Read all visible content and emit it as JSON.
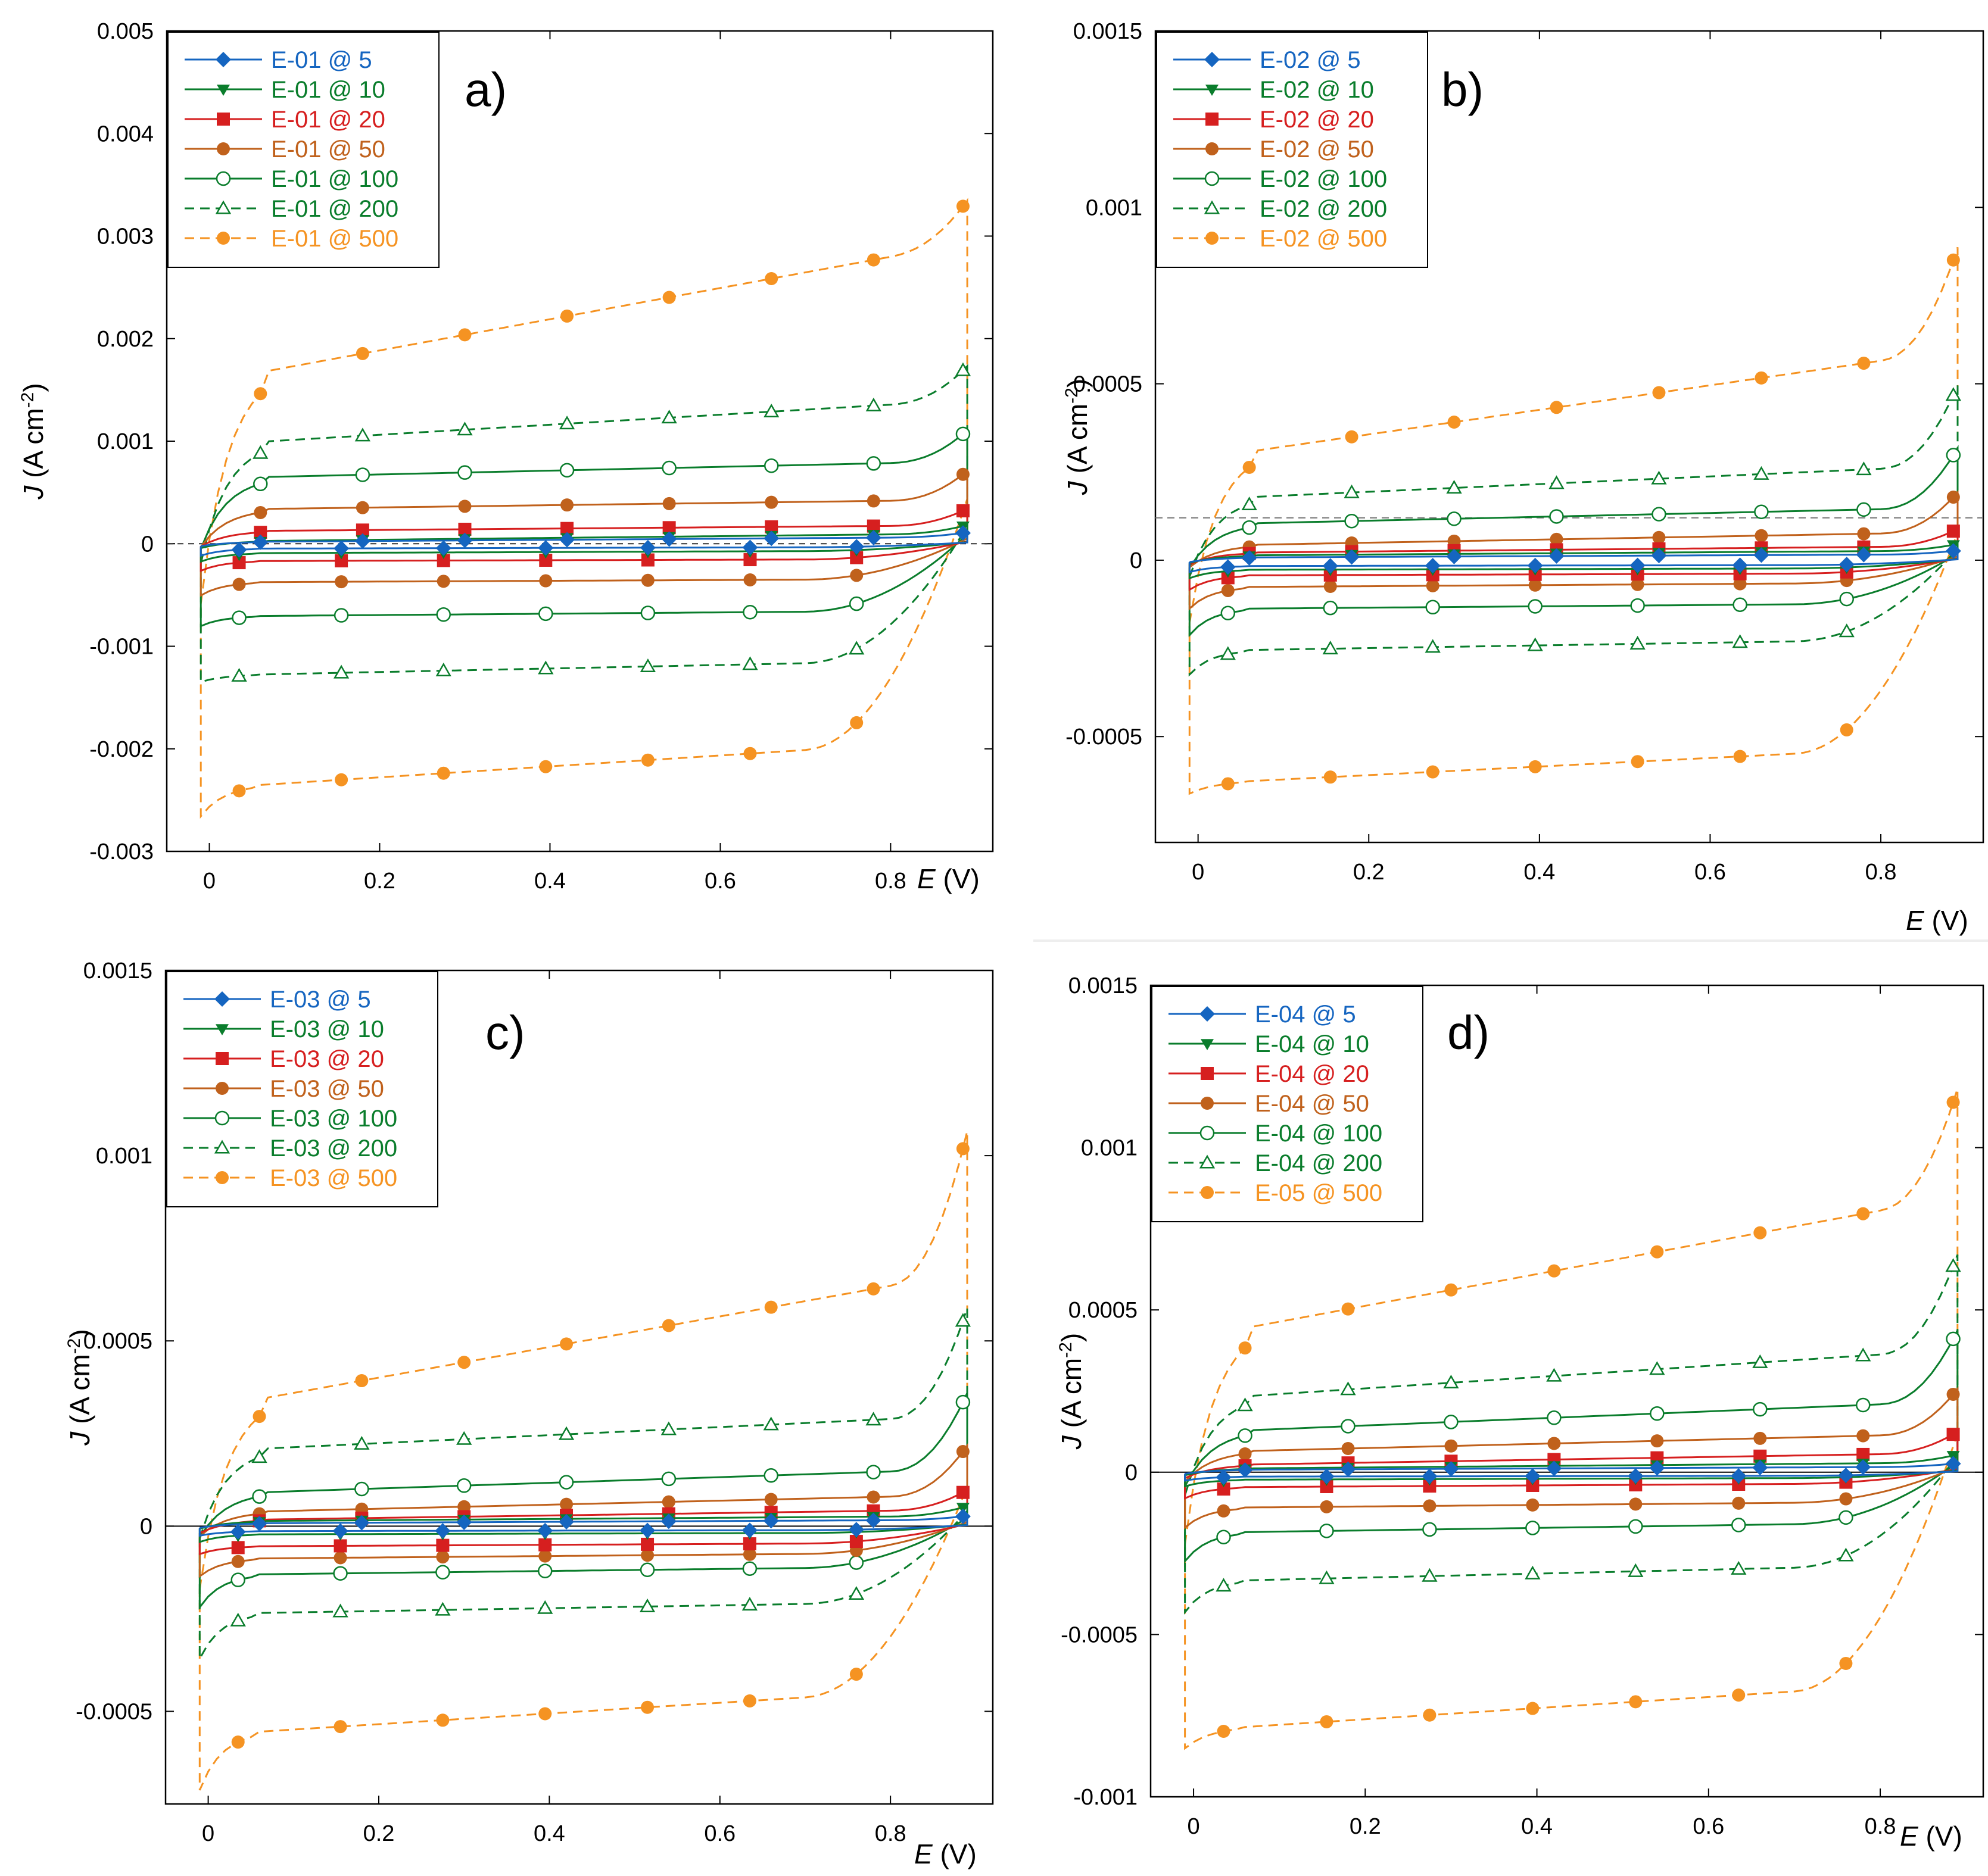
{
  "figure": {
    "series_colors": {
      "5": "#1565c0",
      "10": "#0a7d2c",
      "20": "#d61f1f",
      "50": "#c0611c",
      "100": "#0a7d2c",
      "200": "#0a7d2c",
      "500": "#f59322"
    }
  },
  "chart_data": [
    {
      "id": "a",
      "type": "line",
      "panel_label": "a)",
      "xlabel_symbol": "E",
      "xlabel_unit": " (V)",
      "ylabel_symbol": "J",
      "ylabel_unit": " (A cm",
      "ylabel_exp": "-2",
      "ylabel_close": ")",
      "xlim": [
        -0.05,
        0.92
      ],
      "ylim": [
        -0.003,
        0.005
      ],
      "xticks": [
        0,
        0.2,
        0.4,
        0.6,
        0.8
      ],
      "xtick_labels": [
        "0",
        "0.2",
        "0.4",
        "0.6",
        "0.8"
      ],
      "yticks": [
        -0.003,
        -0.002,
        -0.001,
        0,
        0.001,
        0.002,
        0.003,
        0.004,
        0.005
      ],
      "ytick_labels": [
        "-0.003",
        "-0.002",
        "-0.001",
        "0",
        "0.001",
        "0.002",
        "0.003",
        "0.004",
        "0.005"
      ],
      "zero_line": "dashed",
      "legend_position": "top-left",
      "series": [
        {
          "name": "E-01 @ 5",
          "rate": "5",
          "marker": "diamond",
          "upper": 4e-05,
          "lower": -4e-05,
          "slope": 5e-05,
          "top": 0.00012,
          "bottom": -0.00014
        },
        {
          "name": "E-01 @ 10",
          "rate": "10",
          "marker": "tri-down",
          "upper": 6e-05,
          "lower": -8e-05,
          "slope": 8e-05,
          "top": 0.0002,
          "bottom": -0.0002
        },
        {
          "name": "E-01 @ 20",
          "rate": "20",
          "marker": "square",
          "upper": 0.00015,
          "lower": -0.00016,
          "slope": 6e-05,
          "top": 0.00038,
          "bottom": -0.0003
        },
        {
          "name": "E-01 @ 50",
          "rate": "50",
          "marker": "circle",
          "upper": 0.00038,
          "lower": -0.00036,
          "slope": 0.0001,
          "top": 0.00078,
          "bottom": -0.00055
        },
        {
          "name": "E-01 @ 100",
          "rate": "100",
          "marker": "circle-open",
          "upper": 0.00072,
          "lower": -0.00068,
          "slope": 0.00017,
          "top": 0.00118,
          "bottom": -0.00082
        },
        {
          "name": "E-01 @ 200",
          "rate": "200",
          "marker": "tri-open",
          "upper": 0.00118,
          "lower": -0.00121,
          "slope": 0.00045,
          "top": 0.0018,
          "bottom": -0.0013
        },
        {
          "name": "E-01 @ 500",
          "rate": "500",
          "marker": "circle",
          "upper": 0.00225,
          "lower": -0.00215,
          "slope": 0.0014,
          "top": 0.0034,
          "bottom": -0.00255
        }
      ]
    },
    {
      "id": "b",
      "type": "line",
      "panel_label": "b)",
      "xlabel_symbol": "E",
      "xlabel_unit": " (V)",
      "ylabel_symbol": "J",
      "ylabel_unit": " (A cm",
      "ylabel_exp": "-2",
      "ylabel_close": ")",
      "xlim": [
        -0.05,
        0.92
      ],
      "ylim": [
        -0.0008,
        0.0015
      ],
      "xticks": [
        0,
        0.2,
        0.4,
        0.6,
        0.8
      ],
      "xtick_labels": [
        "0",
        "0.2",
        "0.4",
        "0.6",
        "0.8"
      ],
      "yticks": [
        -0.0005,
        0,
        0.0005,
        0.001,
        0.0015
      ],
      "ytick_labels": [
        "-0.0005",
        "0",
        "0.0005",
        "0.001",
        "0.0015"
      ],
      "zero_line": "none",
      "ref_dashed_y": 0.00012,
      "legend_position": "top-left",
      "series": [
        {
          "name": "E-02 @ 5",
          "rate": "5",
          "marker": "diamond",
          "upper": 1.2e-05,
          "lower": -1.5e-05,
          "slope": 1e-05,
          "top": 3e-05,
          "bottom": -4e-05
        },
        {
          "name": "E-02 @ 10",
          "rate": "10",
          "marker": "tri-down",
          "upper": 2e-05,
          "lower": -2.5e-05,
          "slope": 1.5e-05,
          "top": 5e-05,
          "bottom": -6e-05
        },
        {
          "name": "E-02 @ 20",
          "rate": "20",
          "marker": "square",
          "upper": 3e-05,
          "lower": -4e-05,
          "slope": 2e-05,
          "top": 0.0001,
          "bottom": -0.0001
        },
        {
          "name": "E-02 @ 50",
          "rate": "50",
          "marker": "circle",
          "upper": 6e-05,
          "lower": -7e-05,
          "slope": 4e-05,
          "top": 0.00022,
          "bottom": -0.00016
        },
        {
          "name": "E-02 @ 100",
          "rate": "100",
          "marker": "circle-open",
          "upper": 0.000125,
          "lower": -0.00013,
          "slope": 5e-05,
          "top": 0.00036,
          "bottom": -0.00024
        },
        {
          "name": "E-02 @ 200",
          "rate": "200",
          "marker": "tri-open",
          "upper": 0.00022,
          "lower": -0.00024,
          "slope": 0.0001,
          "top": 0.00055,
          "bottom": -0.00034
        },
        {
          "name": "E-02 @ 500",
          "rate": "500",
          "marker": "circle",
          "upper": 0.00044,
          "lower": -0.00058,
          "slope": 0.00032,
          "top": 0.00095,
          "bottom": -0.00062
        }
      ]
    },
    {
      "id": "c",
      "type": "line",
      "panel_label": "c)",
      "xlabel_symbol": "E",
      "xlabel_unit": " (V)",
      "ylabel_symbol": "J",
      "ylabel_unit": " (A cm",
      "ylabel_exp": "-2",
      "ylabel_close": ")",
      "xlim": [
        -0.05,
        0.92
      ],
      "ylim": [
        -0.00075,
        0.0015
      ],
      "xticks": [
        0,
        0.2,
        0.4,
        0.6,
        0.8
      ],
      "xtick_labels": [
        "0",
        "0.2",
        "0.4",
        "0.6",
        "0.8"
      ],
      "yticks": [
        -0.0005,
        0,
        0.0005,
        0.001,
        0.0015
      ],
      "ytick_labels": [
        "-0.0005",
        "0",
        "0.0005",
        "0.001",
        "0.0015"
      ],
      "zero_line": "solid",
      "legend_position": "top-left",
      "series": [
        {
          "name": "E-03 @ 5",
          "rate": "5",
          "marker": "diamond",
          "upper": 1.2e-05,
          "lower": -1.2e-05,
          "slope": 1e-05,
          "top": 3e-05,
          "bottom": -3e-05
        },
        {
          "name": "E-03 @ 10",
          "rate": "10",
          "marker": "tri-down",
          "upper": 2e-05,
          "lower": -2e-05,
          "slope": 1.5e-05,
          "top": 6e-05,
          "bottom": -5e-05
        },
        {
          "name": "E-03 @ 20",
          "rate": "20",
          "marker": "square",
          "upper": 3e-05,
          "lower": -5e-05,
          "slope": 3e-05,
          "top": 0.00011,
          "bottom": -8e-05
        },
        {
          "name": "E-03 @ 50",
          "rate": "50",
          "marker": "circle",
          "upper": 6e-05,
          "lower": -8e-05,
          "slope": 5e-05,
          "top": 0.00025,
          "bottom": -0.00015
        },
        {
          "name": "E-03 @ 100",
          "rate": "100",
          "marker": "circle-open",
          "upper": 0.00012,
          "lower": -0.00012,
          "slope": 7e-05,
          "top": 0.00041,
          "bottom": -0.00025
        },
        {
          "name": "E-03 @ 200",
          "rate": "200",
          "marker": "tri-open",
          "upper": 0.00025,
          "lower": -0.00022,
          "slope": 0.0001,
          "top": 0.00066,
          "bottom": -0.0004
        },
        {
          "name": "E-03 @ 500",
          "rate": "500",
          "marker": "circle",
          "upper": 0.0005,
          "lower": -0.0005,
          "slope": 0.00038,
          "top": 0.00115,
          "bottom": -0.00072
        }
      ]
    },
    {
      "id": "d",
      "type": "line",
      "panel_label": "d)",
      "xlabel_symbol": "E",
      "xlabel_unit": " (V)",
      "ylabel_symbol": "J",
      "ylabel_unit": " (A cm",
      "ylabel_exp": "-2",
      "ylabel_close": ")",
      "xlim": [
        -0.05,
        0.92
      ],
      "ylim": [
        -0.001,
        0.0015
      ],
      "xticks": [
        0,
        0.2,
        0.4,
        0.6,
        0.8
      ],
      "xtick_labels": [
        "0",
        "0.2",
        "0.4",
        "0.6",
        "0.8"
      ],
      "yticks": [
        -0.001,
        -0.0005,
        0,
        0.0005,
        0.001,
        0.0015
      ],
      "ytick_labels": [
        "-0.001",
        "-0.0005",
        "0",
        "0.0005",
        "0.001",
        "0.0015"
      ],
      "zero_line": "solid",
      "legend_position": "top-left",
      "series": [
        {
          "name": "E-04 @ 5",
          "rate": "5",
          "marker": "diamond",
          "upper": 1.2e-05,
          "lower": -1.2e-05,
          "slope": 1e-05,
          "top": 3e-05,
          "bottom": -3e-05
        },
        {
          "name": "E-04 @ 10",
          "rate": "10",
          "marker": "tri-down",
          "upper": 2e-05,
          "lower": -2e-05,
          "slope": 2e-05,
          "top": 6e-05,
          "bottom": -5e-05
        },
        {
          "name": "E-04 @ 20",
          "rate": "20",
          "marker": "square",
          "upper": 4e-05,
          "lower": -4e-05,
          "slope": 4e-05,
          "top": 0.00014,
          "bottom": -9e-05
        },
        {
          "name": "E-04 @ 50",
          "rate": "50",
          "marker": "circle",
          "upper": 9e-05,
          "lower": -0.0001,
          "slope": 6e-05,
          "top": 0.00029,
          "bottom": -0.00019
        },
        {
          "name": "E-04 @ 100",
          "rate": "100",
          "marker": "circle-open",
          "upper": 0.00017,
          "lower": -0.00017,
          "slope": 0.0001,
          "top": 0.00049,
          "bottom": -0.0003
        },
        {
          "name": "E-04 @ 200",
          "rate": "200",
          "marker": "tri-open",
          "upper": 0.0003,
          "lower": -0.00031,
          "slope": 0.00016,
          "top": 0.00074,
          "bottom": -0.00045
        },
        {
          "name": "E-05 @ 500",
          "rate": "500",
          "marker": "circle",
          "upper": 0.00063,
          "lower": -0.00072,
          "slope": 0.00045,
          "top": 0.00125,
          "bottom": -0.0008
        }
      ]
    }
  ]
}
